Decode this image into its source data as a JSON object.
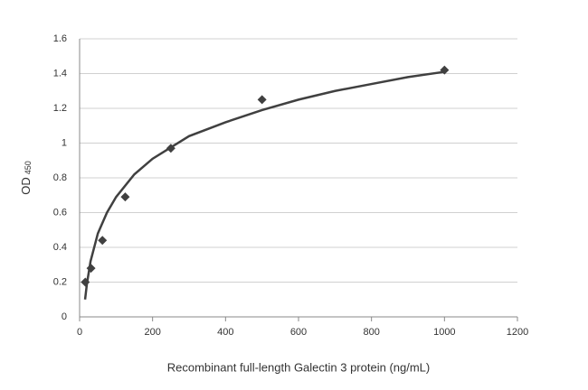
{
  "chart_data": {
    "type": "scatter",
    "x_label": "Recombinant full-length Galectin 3 protein (ng/mL)",
    "y_label": "OD",
    "y_label_subscript": "450",
    "x": [
      15.6,
      31.25,
      62.5,
      125,
      250,
      500,
      1000
    ],
    "series": [
      {
        "color": "#404040",
        "marker": "diamond",
        "values": [
          0.2,
          0.28,
          0.44,
          0.69,
          0.97,
          1.25,
          1.42
        ]
      }
    ],
    "trendline": {
      "color": "#404040",
      "x": [
        15,
        20,
        30,
        50,
        75,
        100,
        150,
        200,
        300,
        400,
        500,
        600,
        700,
        800,
        900,
        1000
      ],
      "values": [
        0.1,
        0.19,
        0.32,
        0.48,
        0.6,
        0.69,
        0.82,
        0.91,
        1.04,
        1.12,
        1.19,
        1.25,
        1.3,
        1.34,
        1.38,
        1.41
      ]
    },
    "xlim": [
      0,
      1200
    ],
    "xticks": [
      0,
      200,
      400,
      600,
      800,
      1000,
      1200
    ],
    "ylim": [
      0,
      1.6
    ],
    "yticks": [
      0,
      0.2,
      0.4,
      0.6,
      0.8,
      1,
      1.2,
      1.4,
      1.6
    ],
    "grid": true
  }
}
